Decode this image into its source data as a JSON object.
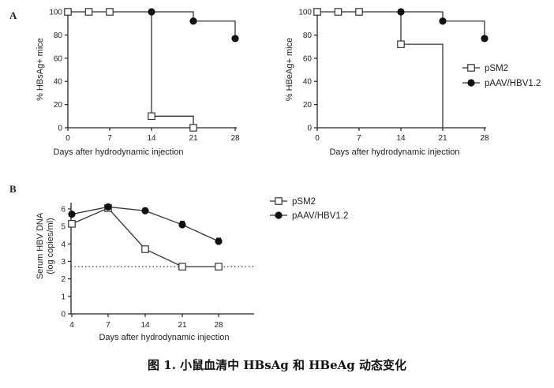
{
  "caption": "图 1. 小鼠血清中 HBsAg 和 HBeAg 动态变化",
  "chart_data": [
    {
      "panel": "A",
      "type": "line",
      "step": true,
      "xlabel": "Days after hydrodynamic injection",
      "ylabel": "% HBsAg+ mice",
      "xlim": [
        0,
        28
      ],
      "ylim": [
        0,
        100
      ],
      "xticks": [
        0,
        7,
        14,
        21,
        28
      ],
      "yticks": [
        0,
        20,
        40,
        60,
        80,
        100
      ],
      "series": [
        {
          "marker": "open-square",
          "x": [
            0,
            3.5,
            7,
            14,
            21
          ],
          "y": [
            100,
            100,
            100,
            10,
            0
          ]
        },
        {
          "marker": "filled-circle",
          "x": [
            14,
            21,
            28
          ],
          "y": [
            100,
            92,
            77
          ]
        }
      ]
    },
    {
      "panel": "",
      "type": "line",
      "step": true,
      "xlabel": "Days after hydrodynamic injection",
      "ylabel": "% HBeAg+ mice",
      "xlim": [
        0,
        28
      ],
      "ylim": [
        0,
        100
      ],
      "xticks": [
        0,
        7,
        14,
        21,
        28
      ],
      "yticks": [
        0,
        20,
        40,
        60,
        80,
        100
      ],
      "series": [
        {
          "marker": "open-square",
          "x": [
            0,
            3.5,
            7,
            14
          ],
          "y": [
            100,
            100,
            100,
            72
          ],
          "drop_to_zero_at": 21
        },
        {
          "marker": "filled-circle",
          "x": [
            14,
            28
          ],
          "y": [
            100,
            77
          ],
          "step_at": [
            21,
            92
          ]
        }
      ],
      "legend": [
        {
          "label": "pSM2",
          "marker": "open-square"
        },
        {
          "label": "pAAV/HBV1.2",
          "marker": "filled-circle"
        }
      ],
      "legend_position": "right"
    },
    {
      "panel": "B",
      "type": "line",
      "step": false,
      "xlabel": "Days after hydrodynamic injection",
      "ylabel": "Serum HBV DNA",
      "ylabel2": "(log copies/ml)",
      "xcategories": [
        "4",
        "7",
        "14",
        "21",
        "28"
      ],
      "ylim": [
        0,
        6
      ],
      "yticks": [
        0,
        1,
        2,
        3,
        4,
        5,
        6
      ],
      "reference_line": 2.7,
      "series": [
        {
          "marker": "open-square",
          "values": [
            5.15,
            6.05,
            3.7,
            2.7,
            2.7
          ]
        },
        {
          "marker": "filled-circle",
          "values": [
            5.7,
            6.12,
            5.9,
            5.1,
            4.15
          ],
          "error": [
            0.05,
            0.05,
            0.15,
            0.2,
            0.18
          ]
        }
      ],
      "legend": [
        {
          "label": "pSM2",
          "marker": "open-square"
        },
        {
          "label": "pAAV/HBV1.2",
          "marker": "filled-circle"
        }
      ],
      "legend_position": "top-right"
    }
  ]
}
